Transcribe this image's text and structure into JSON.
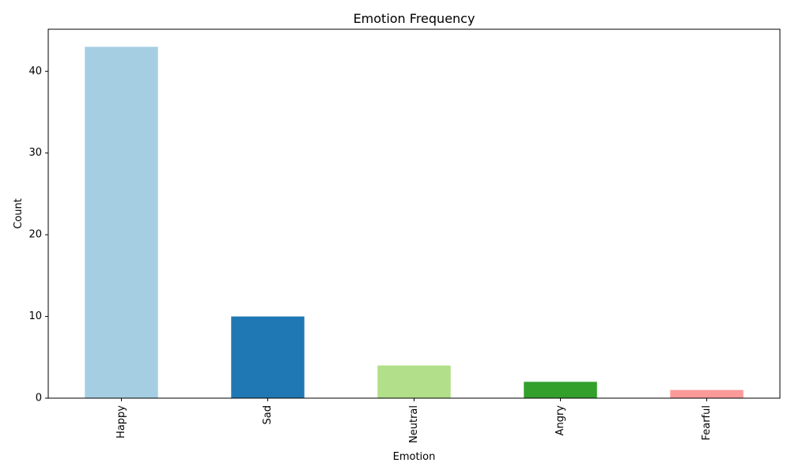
{
  "chart_data": {
    "type": "bar",
    "title": "Emotion Frequency",
    "xlabel": "Emotion",
    "ylabel": "Count",
    "categories": [
      "Happy",
      "Sad",
      "Neutral",
      "Angry",
      "Fearful"
    ],
    "values": [
      43,
      10,
      4,
      2,
      1
    ],
    "colors": [
      "#a6cee3",
      "#1f78b4",
      "#b2df8a",
      "#33a02c",
      "#fb9a99"
    ],
    "ylim": [
      0,
      45.15
    ],
    "yticks": [
      0,
      10,
      20,
      30,
      40
    ],
    "x_tick_rotation": "vertical",
    "grid": false,
    "legend": "none"
  }
}
